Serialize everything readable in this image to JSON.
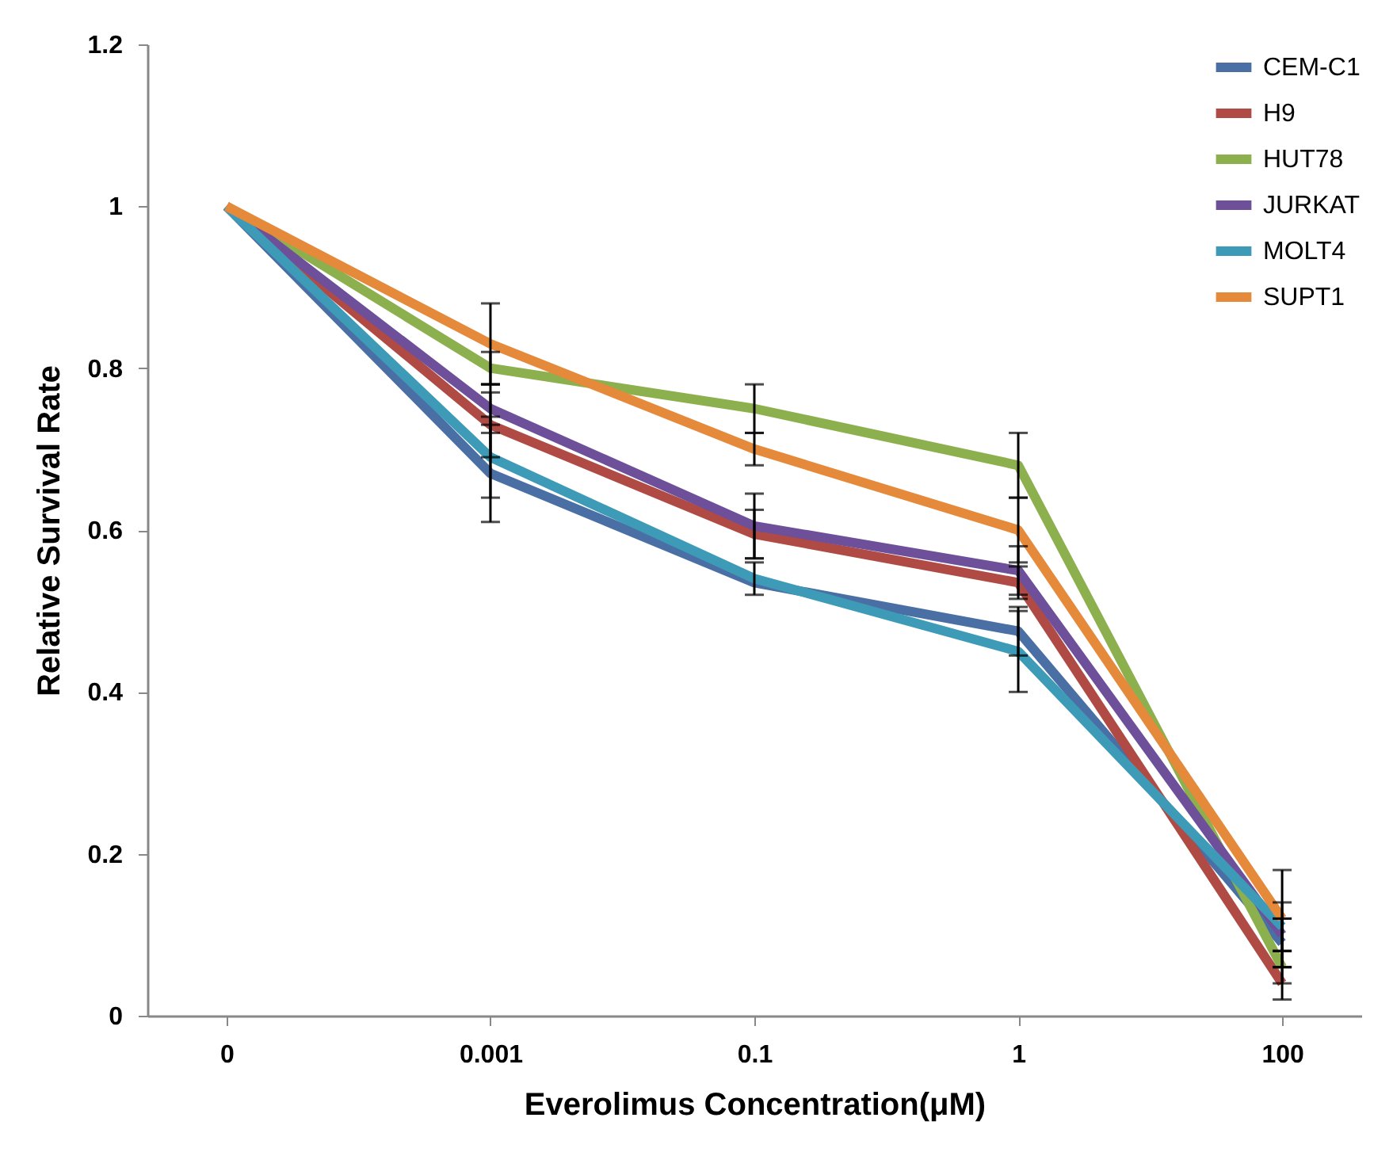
{
  "chart_data": {
    "type": "line",
    "xlabel": "Everolimus Concentration(μM)",
    "ylabel": "Relative Survival Rate",
    "categories": [
      "0",
      "0.001",
      "0.1",
      "1",
      "100"
    ],
    "series": [
      {
        "name": "CEM-C1",
        "color": "#4a6fa5",
        "values": [
          1,
          0.67,
          0.535,
          0.475,
          0.09
        ],
        "errors": [
          null,
          0.06,
          null,
          0.03,
          0.03
        ]
      },
      {
        "name": "H9",
        "color": "#b04a45",
        "values": [
          1,
          0.73,
          0.595,
          0.535,
          0.04
        ],
        "errors": [
          null,
          0.04,
          0.03,
          0.02,
          0.02
        ]
      },
      {
        "name": "HUT78",
        "color": "#8cb04e",
        "values": [
          1,
          0.8,
          0.75,
          0.68,
          0.06
        ],
        "errors": [
          null,
          0.02,
          0.03,
          0.04,
          0.02
        ]
      },
      {
        "name": "JURKAT",
        "color": "#6e4f9a",
        "values": [
          1,
          0.75,
          0.605,
          0.55,
          0.1
        ],
        "errors": [
          null,
          0.03,
          0.04,
          0.03,
          0.02
        ]
      },
      {
        "name": "MOLT4",
        "color": "#3e9bb8",
        "values": [
          1,
          0.69,
          0.54,
          0.45,
          0.11
        ],
        "errors": [
          null,
          0.05,
          0.02,
          0.05,
          0.03
        ]
      },
      {
        "name": "SUPT1",
        "color": "#e5893a",
        "values": [
          1,
          0.83,
          0.7,
          0.6,
          0.12
        ],
        "errors": [
          null,
          0.05,
          0.02,
          0.04,
          0.06
        ]
      }
    ],
    "ylim": [
      0,
      1.2
    ],
    "yticks": [
      0,
      0.2,
      0.4,
      0.6,
      0.8,
      1,
      1.2
    ],
    "grid": false,
    "legend": "top right",
    "marker": "none",
    "line_style": "solid"
  }
}
